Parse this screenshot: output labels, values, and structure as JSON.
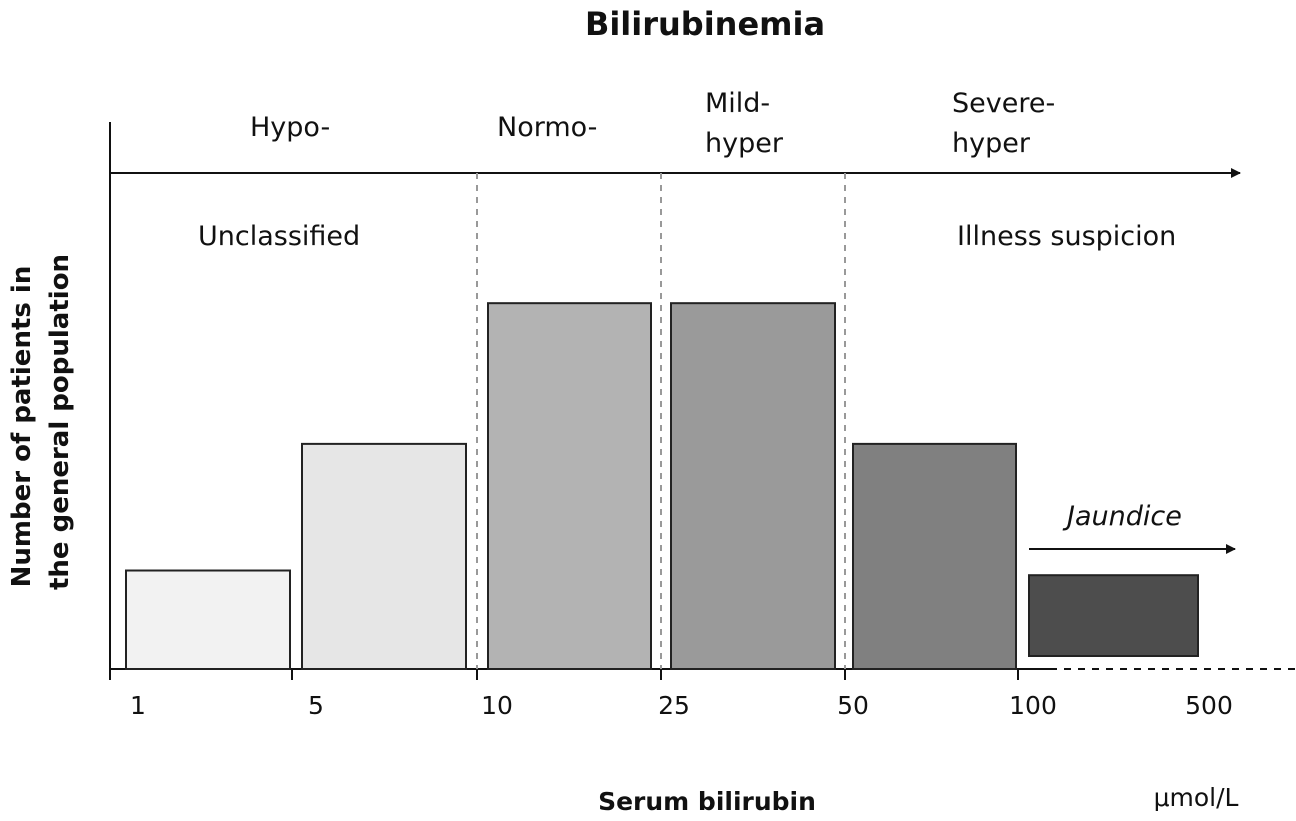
{
  "chart_data": {
    "type": "bar",
    "title": "Bilirubinemia",
    "xlabel": "Serum bilirubin",
    "x_unit": "μmol/L",
    "ylabel_lines": [
      "Number of patients in",
      "the general population"
    ],
    "x_scale": "log",
    "tick_labels": [
      "1",
      "5",
      "10",
      "25",
      "50",
      "100",
      "500"
    ],
    "categories": [
      "1-5",
      "5-10",
      "10-25",
      "25-50",
      "50-100",
      ">100"
    ],
    "values": [
      21,
      48,
      78,
      78,
      48,
      20
    ],
    "ylim": [
      0,
      100
    ],
    "colors": [
      "#f2f2f2",
      "#e6e6e6",
      "#b3b3b3",
      "#9a9a9a",
      "#808080",
      "#4d4d4d"
    ],
    "grid": false,
    "bilirubinemia_levels": [
      {
        "label_lines": [
          "Hypo-"
        ]
      },
      {
        "label_lines": [
          "Normo-"
        ]
      },
      {
        "label_lines": [
          "Mild-",
          "hyper"
        ]
      },
      {
        "label_lines": [
          "Severe-",
          "hyper"
        ]
      }
    ],
    "regions": [
      {
        "label": "Unclassified"
      },
      {
        "label": "Illness suspicion"
      }
    ],
    "annotation": "Jaundice"
  }
}
